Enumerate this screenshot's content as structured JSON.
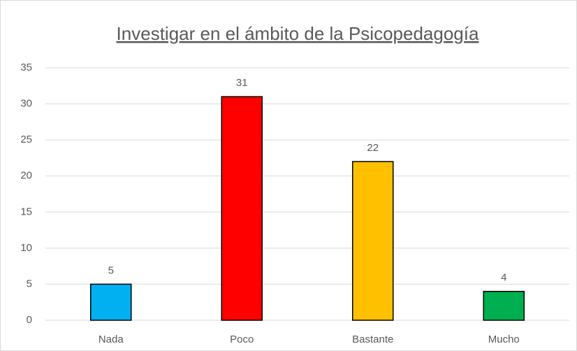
{
  "chart_data": {
    "type": "bar",
    "title": "Investigar en el ámbito de la Psicopedagogía",
    "categories": [
      "Nada",
      "Poco",
      "Bastante",
      "Mucho"
    ],
    "values": [
      5,
      31,
      22,
      4
    ],
    "colors": [
      "#00b0f0",
      "#ff0000",
      "#ffc000",
      "#00b050"
    ],
    "ylim": [
      0,
      35
    ],
    "yticks": [
      0,
      5,
      10,
      15,
      20,
      25,
      30,
      35
    ],
    "grid": true,
    "data_labels": true
  }
}
